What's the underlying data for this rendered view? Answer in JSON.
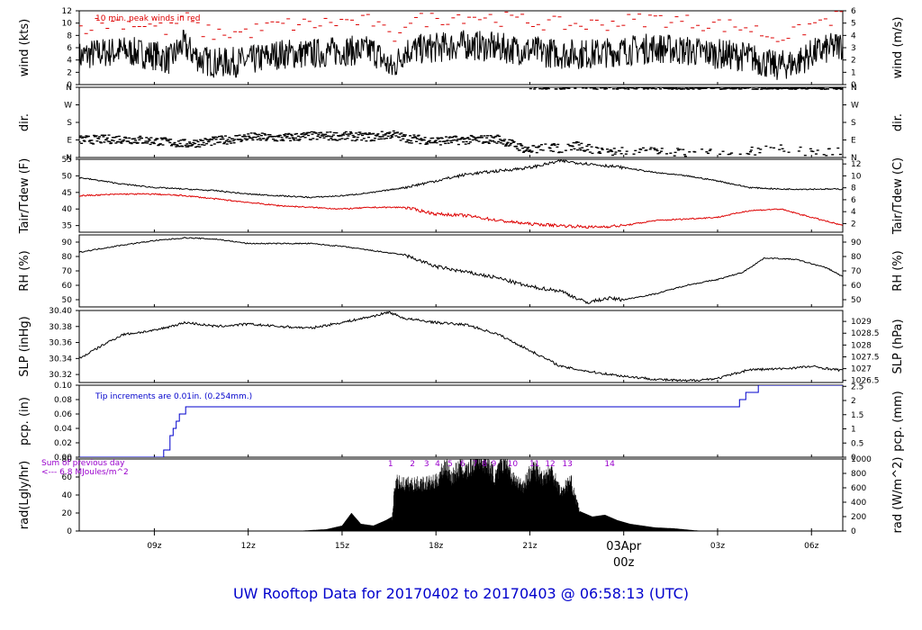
{
  "footer": {
    "title": "UW Rooftop Data for 20170402  to  20170403 @ 06:58:13  (UTC)"
  },
  "colors": {
    "line": "#000000",
    "peak": "#dd0000",
    "dew": "#dd0000",
    "pcp": "#0000cc",
    "rad_note": "#9900cc",
    "footer": "#0000cc",
    "date": "#dd0000"
  },
  "time_axis": {
    "range_hours": [
      6.6,
      31.0
    ],
    "ticks": [
      {
        "h": 9,
        "label": "09z"
      },
      {
        "h": 12,
        "label": "12z"
      },
      {
        "h": 15,
        "label": "15z"
      },
      {
        "h": 18,
        "label": "18z"
      },
      {
        "h": 21,
        "label": "21z"
      },
      {
        "h": 24,
        "label": "03Apr"
      },
      {
        "h": 27,
        "label": "03z"
      },
      {
        "h": 30,
        "label": "06z"
      }
    ],
    "date_sublabel": "00z"
  },
  "chart_data": [
    {
      "type": "line",
      "id": "wind",
      "ylabel": "wind (kts)",
      "ylabel_right": "wind (m/s)",
      "ylim": [
        0,
        12
      ],
      "yticks": [
        0,
        2,
        4,
        6,
        8,
        10,
        12
      ],
      "right_ticks": [
        0,
        1,
        2,
        3,
        4,
        5,
        6
      ],
      "annotation": "10 min. peak winds in red",
      "x": [
        6.6,
        7.0,
        8.0,
        9.0,
        9.5,
        9.9,
        10.5,
        11.0,
        12.0,
        13.0,
        14.0,
        15.0,
        16.0,
        16.6,
        17.0,
        18.0,
        19.0,
        20.0,
        21.0,
        22.0,
        23.0,
        24.0,
        25.0,
        26.0,
        27.0,
        28.0,
        28.8,
        29.5,
        30.0,
        31.0
      ],
      "y": [
        4.5,
        5.0,
        5.5,
        4.8,
        4.0,
        6.5,
        4.0,
        3.5,
        3.8,
        5.0,
        5.0,
        5.5,
        5.5,
        2.5,
        5.5,
        6.0,
        6.5,
        6.0,
        5.5,
        5.0,
        5.0,
        5.5,
        6.0,
        5.5,
        5.0,
        4.5,
        3.0,
        3.5,
        5.0,
        6.5
      ]
    },
    {
      "type": "scatter",
      "id": "dir",
      "ylabel": "dir.",
      "ylabel_right": "dir.",
      "ylim": [
        0,
        360
      ],
      "yticks": [
        "N",
        "E",
        "S",
        "W",
        "N"
      ],
      "x": [
        6.6,
        8.0,
        9.0,
        10.0,
        11.0,
        12.0,
        13.0,
        14.0,
        15.0,
        16.0,
        16.6,
        17.0,
        18.0,
        19.0,
        20.0,
        21.0,
        21.5,
        22.0,
        22.5,
        23.0,
        24.0,
        25.0,
        26.0,
        27.0,
        28.0,
        29.0,
        30.0,
        31.0
      ],
      "y": [
        90,
        95,
        85,
        70,
        85,
        105,
        100,
        110,
        110,
        105,
        120,
        100,
        85,
        90,
        95,
        35,
        55,
        45,
        60,
        40,
        30,
        30,
        25,
        20,
        30,
        45,
        30,
        25
      ]
    },
    {
      "type": "line",
      "id": "temp",
      "ylabel": "Tair/Tdew (F)",
      "ylabel_right": "Tair/Tdew (C)",
      "ylim": [
        33,
        55
      ],
      "yticks": [
        35,
        40,
        45,
        50,
        55
      ],
      "right_ticks": [
        2,
        4,
        6,
        8,
        10,
        12
      ],
      "x": [
        6.6,
        8.0,
        9.0,
        10.0,
        11.0,
        12.0,
        13.0,
        14.0,
        15.0,
        16.0,
        17.0,
        18.0,
        19.0,
        20.0,
        21.0,
        22.0,
        23.0,
        24.0,
        25.0,
        26.0,
        27.0,
        28.0,
        29.0,
        30.0,
        31.0
      ],
      "series": [
        {
          "values": [
            49.5,
            47.5,
            46.5,
            46.0,
            45.5,
            44.5,
            44.0,
            43.5,
            44.0,
            45.0,
            46.5,
            48.5,
            50.5,
            51.5,
            52.5,
            54.5,
            53.5,
            52.5,
            51.0,
            50.0,
            48.5,
            46.5,
            46.0,
            46.0,
            46.0
          ]
        },
        {
          "values": [
            44.0,
            44.5,
            44.5,
            44.0,
            43.0,
            42.0,
            41.0,
            40.5,
            40.0,
            40.5,
            40.5,
            38.5,
            38.0,
            36.5,
            35.5,
            35.0,
            34.5,
            35.0,
            36.5,
            37.0,
            37.5,
            39.5,
            40.0,
            37.5,
            35.0
          ]
        }
      ]
    },
    {
      "type": "line",
      "id": "rh",
      "ylabel": "RH (%)",
      "ylabel_right": "RH (%)",
      "ylim": [
        45,
        95
      ],
      "yticks": [
        50,
        60,
        70,
        80,
        90
      ],
      "right_ticks": [
        50,
        60,
        70,
        80,
        90
      ],
      "x": [
        6.6,
        8.0,
        9.0,
        10.0,
        11.0,
        12.0,
        13.0,
        14.0,
        15.0,
        16.0,
        17.0,
        18.0,
        19.0,
        20.0,
        21.0,
        22.0,
        22.8,
        23.5,
        24.0,
        25.0,
        26.0,
        27.0,
        27.8,
        28.5,
        29.5,
        30.5,
        31.0
      ],
      "y": [
        83,
        88,
        91,
        93,
        92,
        89,
        89,
        89,
        87,
        84,
        81,
        73,
        69,
        65,
        59,
        56,
        48,
        51,
        50,
        54,
        60,
        64,
        69,
        79,
        78,
        72,
        66
      ]
    },
    {
      "type": "line",
      "id": "slp",
      "ylabel": "SLP (inHg)",
      "ylabel_right": "SLP (hPa)",
      "ylim": [
        30.31,
        30.4
      ],
      "yticks": [
        30.32,
        30.34,
        30.36,
        30.38,
        30.4
      ],
      "right_ticks": [
        "1026.5",
        "1027",
        "1027.5",
        "1028",
        "1028.5",
        "1029"
      ],
      "x": [
        6.6,
        7.5,
        8.0,
        9.0,
        10.0,
        11.0,
        12.0,
        13.0,
        14.0,
        15.0,
        16.0,
        16.5,
        17.0,
        18.0,
        19.0,
        20.0,
        21.0,
        22.0,
        23.0,
        24.0,
        25.0,
        26.0,
        27.0,
        28.0,
        29.0,
        30.0,
        31.0
      ],
      "y": [
        30.34,
        30.36,
        30.37,
        30.375,
        30.385,
        30.38,
        30.383,
        30.38,
        30.378,
        30.385,
        30.393,
        30.398,
        30.39,
        30.385,
        30.382,
        30.37,
        30.35,
        30.33,
        30.323,
        30.318,
        30.314,
        30.312,
        30.315,
        30.326,
        30.327,
        30.33,
        30.325
      ]
    },
    {
      "type": "line",
      "id": "pcp",
      "ylabel": "pcp. (in)",
      "ylabel_right": "pcp. (mm)",
      "ylim": [
        0,
        0.1
      ],
      "yticks": [
        0.0,
        0.02,
        0.04,
        0.06,
        0.08,
        0.1
      ],
      "right_ticks": [
        0,
        0.5,
        1,
        1.5,
        2,
        2.5
      ],
      "annotation": "Tip increments are 0.01in. (0.254mm.)",
      "x": [
        6.6,
        9.3,
        9.3,
        9.5,
        9.5,
        9.6,
        9.6,
        9.7,
        9.7,
        9.8,
        9.8,
        9.9,
        9.9,
        10.0,
        10.0,
        10.2,
        10.2,
        27.7,
        27.7,
        27.9,
        27.9,
        28.3,
        28.3,
        28.6,
        28.6,
        31.0
      ],
      "y": [
        0.0,
        0.0,
        0.01,
        0.01,
        0.03,
        0.03,
        0.04,
        0.04,
        0.05,
        0.05,
        0.06,
        0.06,
        0.06,
        0.06,
        0.07,
        0.07,
        0.07,
        0.07,
        0.08,
        0.08,
        0.09,
        0.09,
        0.1,
        0.1,
        0.1,
        0.1
      ]
    },
    {
      "type": "area",
      "id": "rad",
      "ylabel": "rad(Lgly/hr)",
      "ylabel_right": "rad (W/m^2)",
      "ylim": [
        0,
        80
      ],
      "yticks": [
        0,
        20,
        40,
        60,
        80
      ],
      "right_ticks": [
        0,
        200,
        400,
        600,
        800,
        1000
      ],
      "annotation_lines": [
        "Sum of previous day",
        "<--- 6.8 MJoules/m^2"
      ],
      "numbers": [
        {
          "h": 16.55,
          "label": "1"
        },
        {
          "h": 17.25,
          "label": "2"
        },
        {
          "h": 17.7,
          "label": "3"
        },
        {
          "h": 18.05,
          "label": "4"
        },
        {
          "h": 18.45,
          "label": "5"
        },
        {
          "h": 18.85,
          "label": "6"
        },
        {
          "h": 19.25,
          "label": "7"
        },
        {
          "h": 19.55,
          "label": "8"
        },
        {
          "h": 19.85,
          "label": "9"
        },
        {
          "h": 20.45,
          "label": "10"
        },
        {
          "h": 21.15,
          "label": "11"
        },
        {
          "h": 21.65,
          "label": "12"
        },
        {
          "h": 22.2,
          "label": "13"
        },
        {
          "h": 23.55,
          "label": "14"
        }
      ],
      "x": [
        13.5,
        14.5,
        15.0,
        15.3,
        15.6,
        16.0,
        16.4,
        16.6,
        16.7,
        17.0,
        17.5,
        18.0,
        18.3,
        18.5,
        18.8,
        19.0,
        19.3,
        19.6,
        19.9,
        20.2,
        20.5,
        20.8,
        21.1,
        21.4,
        21.7,
        22.0,
        22.3,
        22.6,
        23.0,
        23.4,
        23.8,
        24.2,
        25.0,
        25.6,
        26.2,
        26.6
      ],
      "y": [
        0,
        2,
        6,
        20,
        8,
        6,
        12,
        16,
        60,
        58,
        58,
        60,
        82,
        66,
        80,
        72,
        92,
        85,
        66,
        90,
        62,
        56,
        78,
        66,
        74,
        48,
        62,
        22,
        16,
        18,
        12,
        8,
        4,
        3,
        1,
        0
      ]
    }
  ]
}
